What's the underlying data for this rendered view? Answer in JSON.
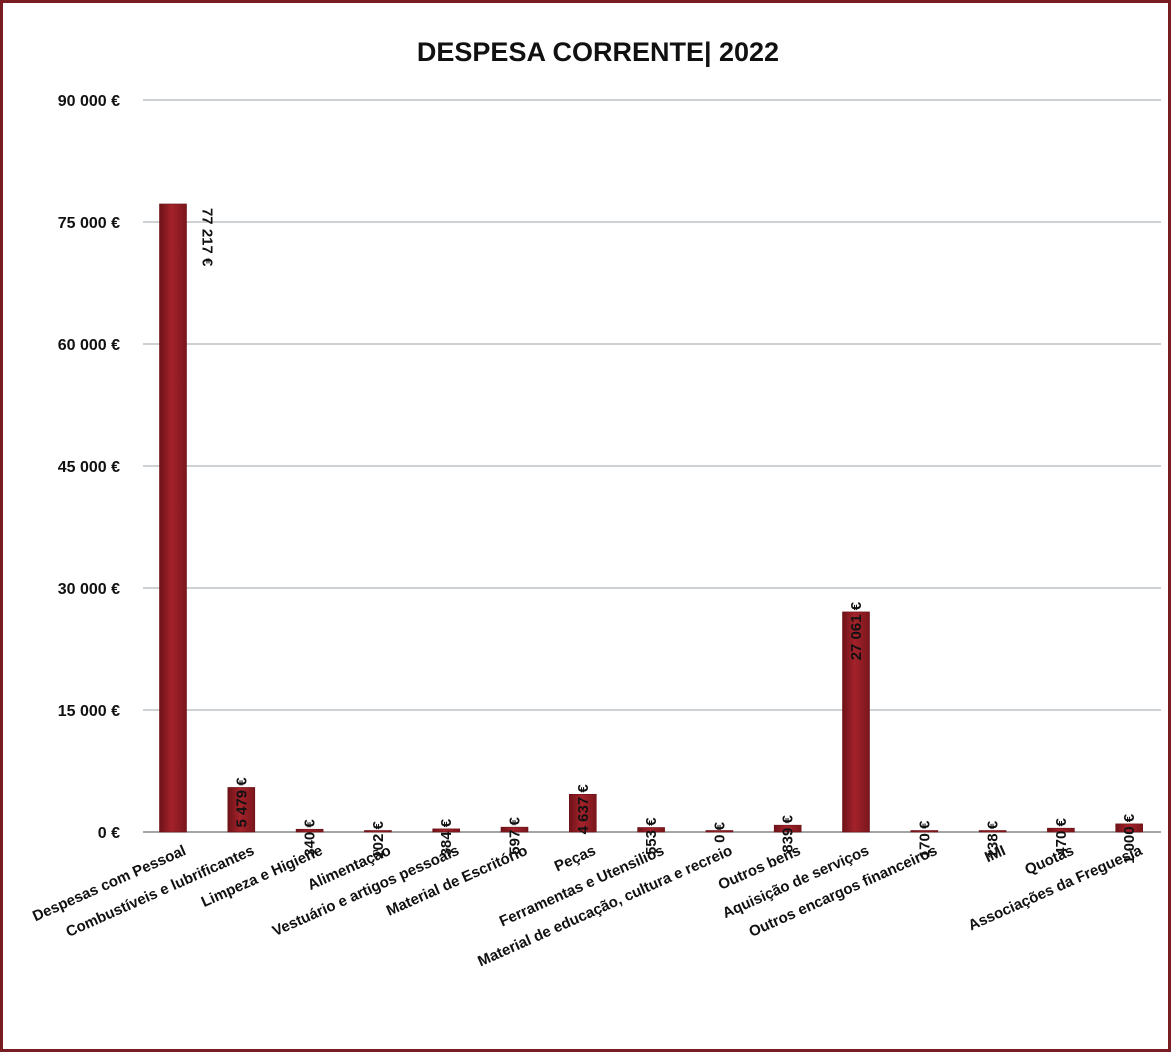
{
  "chart_data": {
    "type": "bar",
    "title": "DESPESA CORRENTE| 2022",
    "xlabel": "",
    "ylabel": "",
    "ylim": [
      0,
      90000
    ],
    "yticks": [
      0,
      15000,
      30000,
      45000,
      60000,
      75000,
      90000
    ],
    "ytick_labels": [
      "0 €",
      "15 000 €",
      "30 000 €",
      "45 000 €",
      "60 000 €",
      "75 000 €",
      "90 000 €"
    ],
    "grid": true,
    "legend": "none",
    "bar_color": "#a4222b",
    "bar_color_dark": "#6d1218",
    "categories": [
      "Despesas com Pessoal",
      "Combustíveis e lubrificantes",
      "Limpeza e Higiene",
      "Alimentação",
      "Vestuário e artigos pessoais",
      "Material de Escritório",
      "Peças",
      "Ferramentas e Utensilios",
      "Material de educação, cultura e recreio",
      "Outros bens",
      "Aquisição de serviços",
      "Outros encargos financeiros",
      "IMI",
      "Quotas",
      "Associações da Freguesia"
    ],
    "values": [
      77217,
      5479,
      340,
      102,
      384,
      597,
      4637,
      553,
      0,
      839,
      27061,
      170,
      138,
      470,
      1000
    ],
    "data_labels": [
      "77 217 €",
      "5 479 €",
      "340 €",
      "102 €",
      "384 €",
      "597 €",
      "4 637 €",
      "553 €",
      "0 €",
      "839 €",
      "27 061 €",
      "170 €",
      "138 €",
      "470 €",
      "1 000 €"
    ]
  }
}
